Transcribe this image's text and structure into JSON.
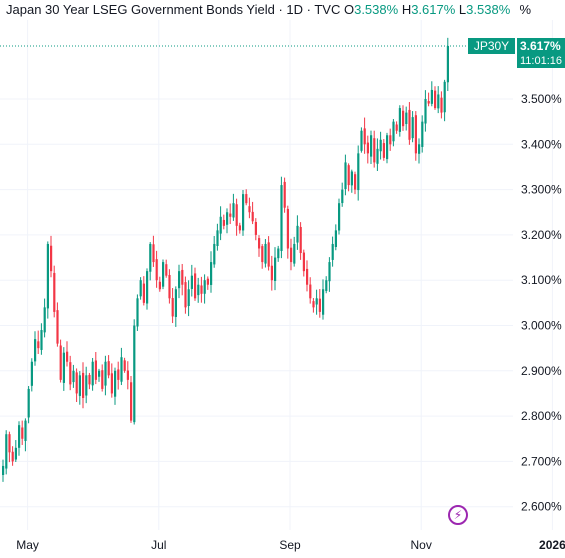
{
  "header": {
    "title": "Japan 30 Year LSEG Government Bonds Yield · 1D · TVC",
    "open_label": "O",
    "open_value": "3.538%",
    "high_label": "H",
    "high_value": "3.617%",
    "low_label": "L",
    "low_value": "3.538%",
    "unit": "%"
  },
  "price_tag": {
    "symbol": "JP30Y",
    "price": "3.617%",
    "time": "11:01:16"
  },
  "colors": {
    "up": "#089981",
    "down": "#f23645",
    "grid": "#f0f3fa",
    "text": "#131722",
    "last_price_line": "#089981"
  },
  "icons": {
    "alert": "lightning-icon"
  },
  "chart_data": {
    "type": "candlestick",
    "title": "Japan 30 Year LSEG Government Bonds Yield · 1D · TVC",
    "ylim": [
      2.56,
      3.65
    ],
    "grid": true,
    "y_ticks": [
      "3.500%",
      "3.400%",
      "3.300%",
      "3.200%",
      "3.100%",
      "3.000%",
      "2.900%",
      "2.800%",
      "2.700%",
      "2.600%"
    ],
    "y_tick_values": [
      3.5,
      3.4,
      3.3,
      3.2,
      3.1,
      3.0,
      2.9,
      2.8,
      2.7,
      2.6
    ],
    "x_ticks": [
      "May",
      "Jul",
      "Sep",
      "Nov",
      "2026"
    ],
    "x_tick_positions": [
      8,
      49,
      90,
      131,
      172
    ],
    "last_price": 3.617,
    "closes": [
      2.69,
      2.76,
      2.72,
      2.7,
      2.73,
      2.78,
      2.75,
      2.79,
      2.86,
      2.92,
      2.97,
      2.95,
      2.99,
      3.04,
      3.18,
      3.12,
      3.03,
      2.96,
      2.88,
      2.94,
      2.92,
      2.87,
      2.9,
      2.85,
      2.89,
      2.84,
      2.89,
      2.87,
      2.92,
      2.88,
      2.9,
      2.86,
      2.92,
      2.89,
      2.85,
      2.9,
      2.88,
      2.93,
      2.9,
      2.88,
      2.79,
      3.0,
      3.06,
      3.1,
      3.05,
      3.12,
      3.18,
      3.14,
      3.1,
      3.08,
      3.14,
      3.11,
      3.06,
      3.02,
      3.08,
      3.12,
      3.09,
      3.04,
      3.08,
      3.11,
      3.06,
      3.09,
      3.07,
      3.1,
      3.09,
      3.14,
      3.18,
      3.21,
      3.24,
      3.22,
      3.25,
      3.24,
      3.27,
      3.22,
      3.21,
      3.29,
      3.27,
      3.25,
      3.23,
      3.2,
      3.17,
      3.14,
      3.18,
      3.13,
      3.1,
      3.15,
      3.17,
      3.31,
      3.26,
      3.17,
      3.14,
      3.18,
      3.22,
      3.16,
      3.12,
      3.09,
      3.06,
      3.04,
      3.06,
      3.03,
      3.08,
      3.1,
      3.14,
      3.18,
      3.21,
      3.27,
      3.3,
      3.36,
      3.31,
      3.34,
      3.3,
      3.38,
      3.43,
      3.4,
      3.38,
      3.42,
      3.36,
      3.39,
      3.41,
      3.37,
      3.42,
      3.4,
      3.45,
      3.43,
      3.48,
      3.44,
      3.47,
      3.41,
      3.46,
      3.38,
      3.4,
      3.45,
      3.5,
      3.49,
      3.52,
      3.48,
      3.51,
      3.47,
      3.538,
      3.617
    ]
  }
}
